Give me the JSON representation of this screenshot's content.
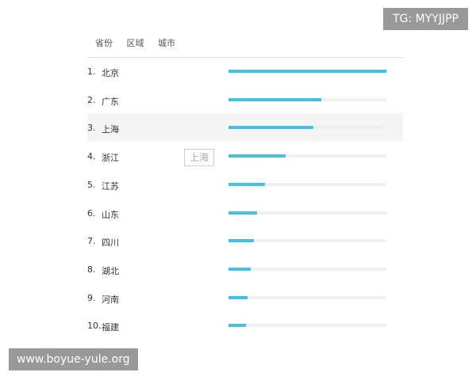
{
  "tabs": [
    "省份",
    "区域",
    "城市"
  ],
  "rows": [
    {
      "rank": "1.",
      "name": "北京",
      "value": 100
    },
    {
      "rank": "2.",
      "name": "广东",
      "value": 59
    },
    {
      "rank": "3.",
      "name": "上海",
      "value": 54
    },
    {
      "rank": "4.",
      "name": "浙江",
      "value": 36
    },
    {
      "rank": "5.",
      "name": "江苏",
      "value": 23
    },
    {
      "rank": "6.",
      "name": "山东",
      "value": 18
    },
    {
      "rank": "7.",
      "name": "四川",
      "value": 16
    },
    {
      "rank": "8.",
      "name": "湖北",
      "value": 14
    },
    {
      "rank": "9.",
      "name": "河南",
      "value": 12
    },
    {
      "rank": "10.",
      "name": "福建",
      "value": 11
    }
  ],
  "highlighted_row": 3,
  "tooltip": "上海",
  "watermark_top": "TG: MYYJJPP",
  "watermark_bottom": "www.boyue-yule.org",
  "colors": {
    "bar": "#45c0e0",
    "track": "#f0f0f0"
  }
}
